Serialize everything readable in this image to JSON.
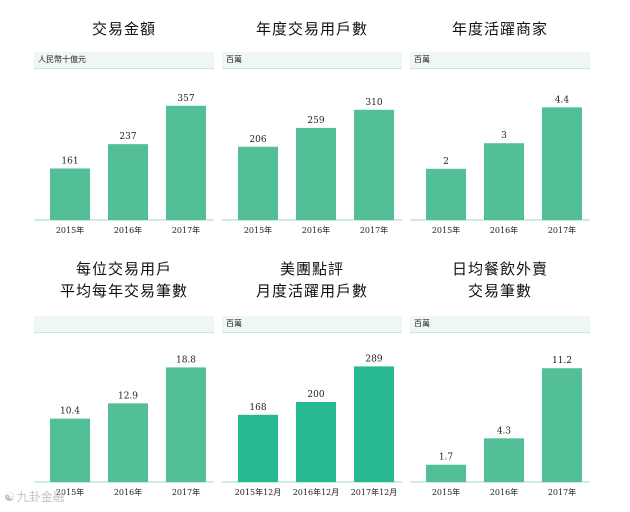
{
  "chart_data": [
    {
      "type": "bar",
      "title": [
        "交易金額"
      ],
      "unit": "人民幣十億元",
      "categories": [
        "2015年",
        "2016年",
        "2017年"
      ],
      "values": [
        161,
        237,
        357
      ],
      "ylim": [
        0,
        400
      ],
      "bar_color": "#52bf96"
    },
    {
      "type": "bar",
      "title": [
        "年度交易用戶數"
      ],
      "unit": "百萬",
      "categories": [
        "2015年",
        "2016年",
        "2017年"
      ],
      "values": [
        206,
        259,
        310
      ],
      "ylim": [
        0,
        360
      ],
      "bar_color": "#52bf96"
    },
    {
      "type": "bar",
      "title": [
        "年度活躍商家"
      ],
      "unit": "百萬",
      "categories": [
        "2015年",
        "2016年",
        "2017年"
      ],
      "values": [
        2.0,
        3.0,
        4.4
      ],
      "ylim": [
        0,
        5
      ],
      "bar_color": "#52bf96"
    },
    {
      "type": "bar",
      "title": [
        "每位交易用戶",
        "平均每年交易筆數"
      ],
      "unit": "",
      "categories": [
        "2015年",
        "2016年",
        "2017年"
      ],
      "values": [
        10.4,
        12.9,
        18.8
      ],
      "ylim": [
        0,
        21
      ],
      "bar_color": "#52bf96"
    },
    {
      "type": "bar",
      "title": [
        "美團點評",
        "月度活躍用戶數"
      ],
      "unit": "百萬",
      "categories": [
        "2015年12月",
        "2016年12月",
        "2017年12月"
      ],
      "values": [
        168,
        200,
        289
      ],
      "ylim": [
        0,
        320
      ],
      "bar_color": "#26b991"
    },
    {
      "type": "bar",
      "title": [
        "日均餐飲外賣",
        "交易筆數"
      ],
      "unit": "百萬",
      "categories": [
        "2015年",
        "2016年",
        "2017年"
      ],
      "values": [
        1.7,
        4.3,
        11.2
      ],
      "ylim": [
        0,
        12.6
      ],
      "bar_color": "#52bf96"
    }
  ],
  "watermark": {
    "icon": "watermark-logo-icon",
    "text": "九卦金融"
  }
}
